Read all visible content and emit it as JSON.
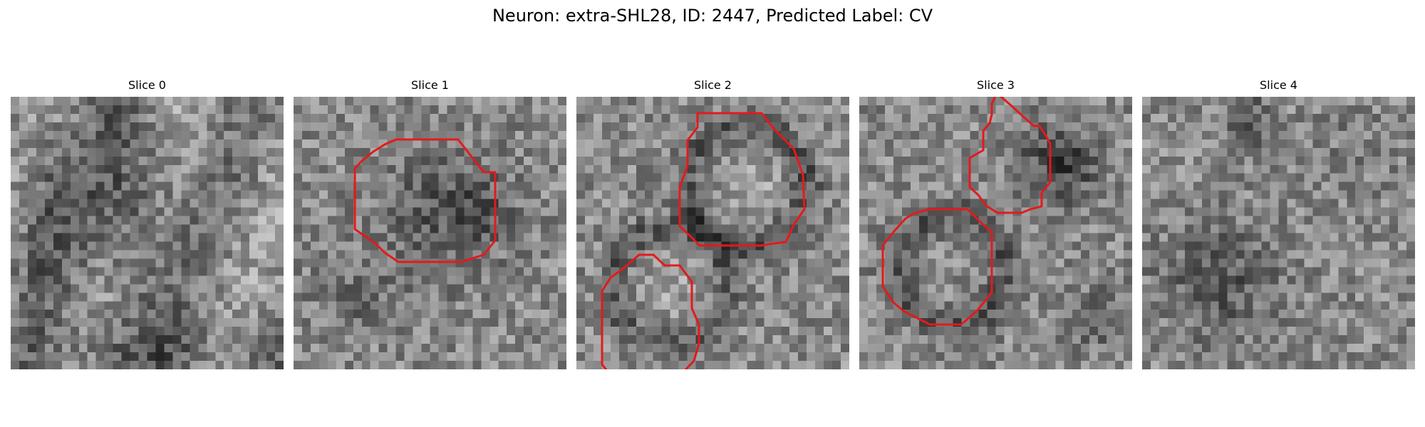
{
  "title": "Neuron: extra-SHL28, ID: 2447, Predicted Label: CV",
  "panels": [
    {
      "title": "Slice 0"
    },
    {
      "title": "Slice 1"
    },
    {
      "title": "Slice 2"
    },
    {
      "title": "Slice 3"
    },
    {
      "title": "Slice 4"
    }
  ],
  "contour_color": "#e31a1c",
  "image_style": "grayscale noisy electron microscopy patches"
}
